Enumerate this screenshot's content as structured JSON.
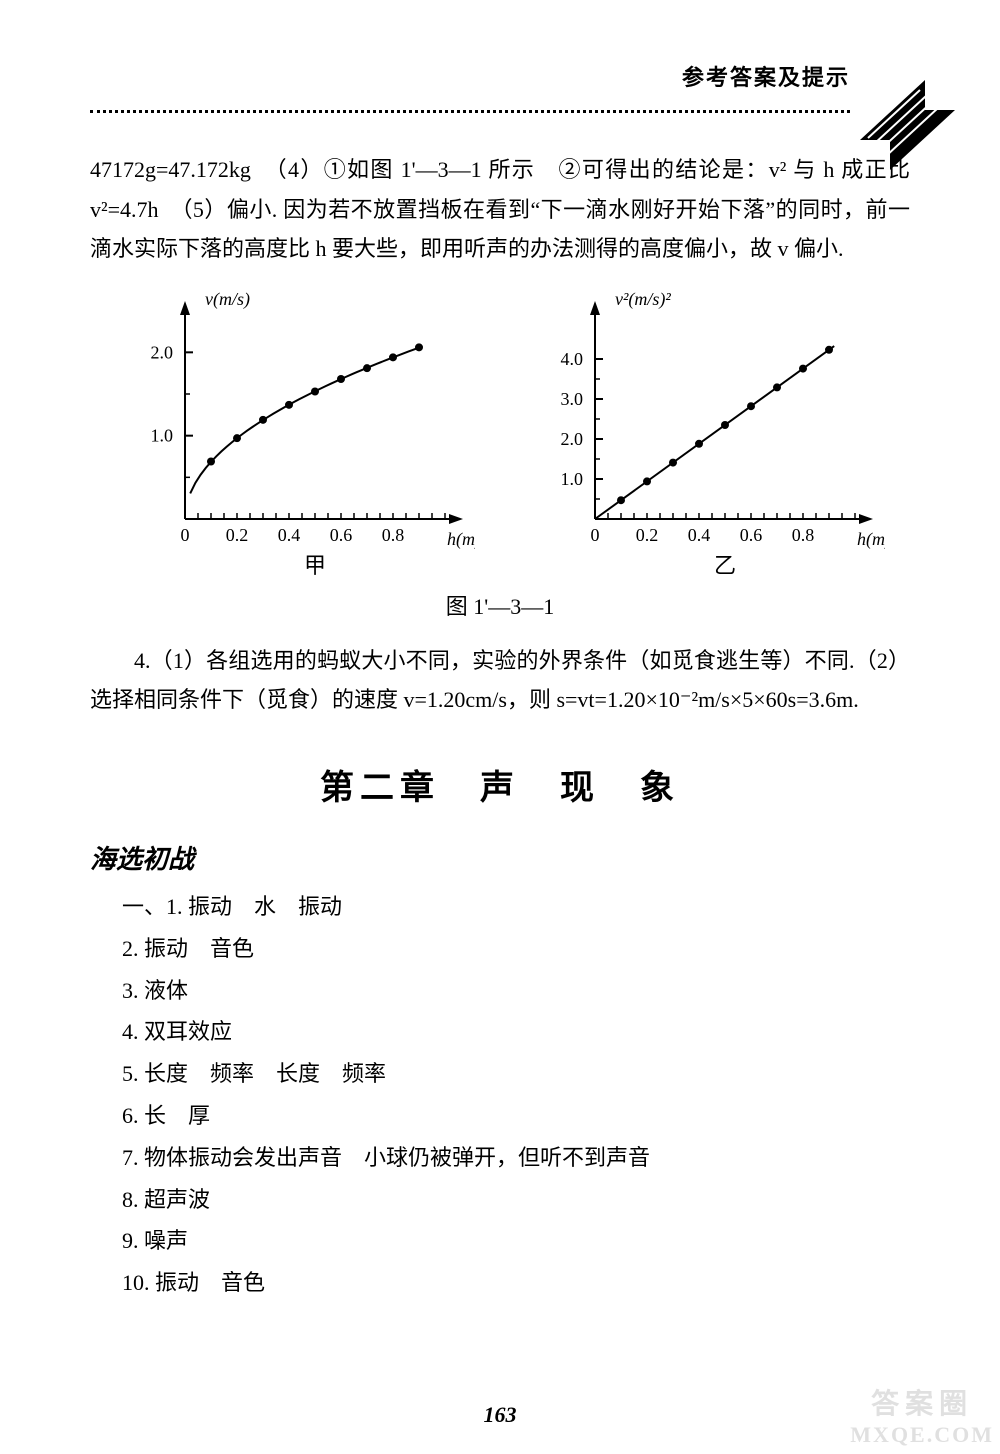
{
  "header": {
    "title": "参考答案及提示"
  },
  "para1": "47172g=47.172kg　（4）①如图 1'—3—1 所示　②可得出的结论是：v² 与 h 成正比 v²=4.7h　（5）偏小. 因为若不放置挡板在看到“下一滴水刚好开始下落”的同时，前一滴水实际下落的高度比 h 要大些，即用听声的办法测得的高度偏小，故 v 偏小.",
  "chart_left": {
    "type": "scatter-line",
    "caption": "甲",
    "xlabel": "h(m)",
    "ylabel": "v(m/s)",
    "xlim": [
      0,
      1.0
    ],
    "ylim": [
      0,
      2.4
    ],
    "xticks": [
      0,
      0.2,
      0.4,
      0.6,
      0.8
    ],
    "yticks": [
      1.0,
      2.0
    ],
    "points_x": [
      0.1,
      0.2,
      0.3,
      0.4,
      0.5,
      0.6,
      0.7,
      0.8,
      0.9
    ],
    "points_y": [
      0.69,
      0.97,
      1.19,
      1.37,
      1.53,
      1.68,
      1.81,
      1.94,
      2.06
    ],
    "line_color": "#000000",
    "marker_color": "#000000",
    "marker_size": 4,
    "background": "#ffffff"
  },
  "chart_right": {
    "type": "scatter-line",
    "caption": "乙",
    "xlabel": "h(m)",
    "ylabel": "v²(m/s)²",
    "xlim": [
      0,
      1.0
    ],
    "ylim": [
      0,
      5.0
    ],
    "xticks": [
      0,
      0.2,
      0.4,
      0.6,
      0.8
    ],
    "yticks": [
      1.0,
      2.0,
      3.0,
      4.0
    ],
    "points_x": [
      0.1,
      0.2,
      0.3,
      0.4,
      0.5,
      0.6,
      0.7,
      0.8,
      0.9
    ],
    "points_y": [
      0.47,
      0.94,
      1.41,
      1.88,
      2.35,
      2.82,
      3.29,
      3.76,
      4.23
    ],
    "line_color": "#000000",
    "marker_color": "#000000",
    "marker_size": 4,
    "background": "#ffffff"
  },
  "figure_caption": "图 1'—3—1",
  "para2": "4.（1）各组选用的蚂蚁大小不同，实验的外界条件（如觅食逃生等）不同.（2）选择相同条件下（觅食）的速度 v=1.20cm/s，则 s=vt=1.20×10⁻²m/s×5×60s=3.6m.",
  "chapter": "第二章　声　现　象",
  "section": "海选初战",
  "answers": [
    "一、1. 振动　水　振动",
    "2. 振动　音色",
    "3. 液体",
    "4. 双耳效应",
    "5. 长度　频率　长度　频率",
    "6. 长　厚",
    "7. 物体振动会发出声音　小球仍被弹开，但听不到声音",
    "8. 超声波",
    "9. 噪声",
    "10. 振动　音色"
  ],
  "page_number": "163",
  "watermark": {
    "top": "答案圈",
    "bottom": "MXQE.COM"
  }
}
